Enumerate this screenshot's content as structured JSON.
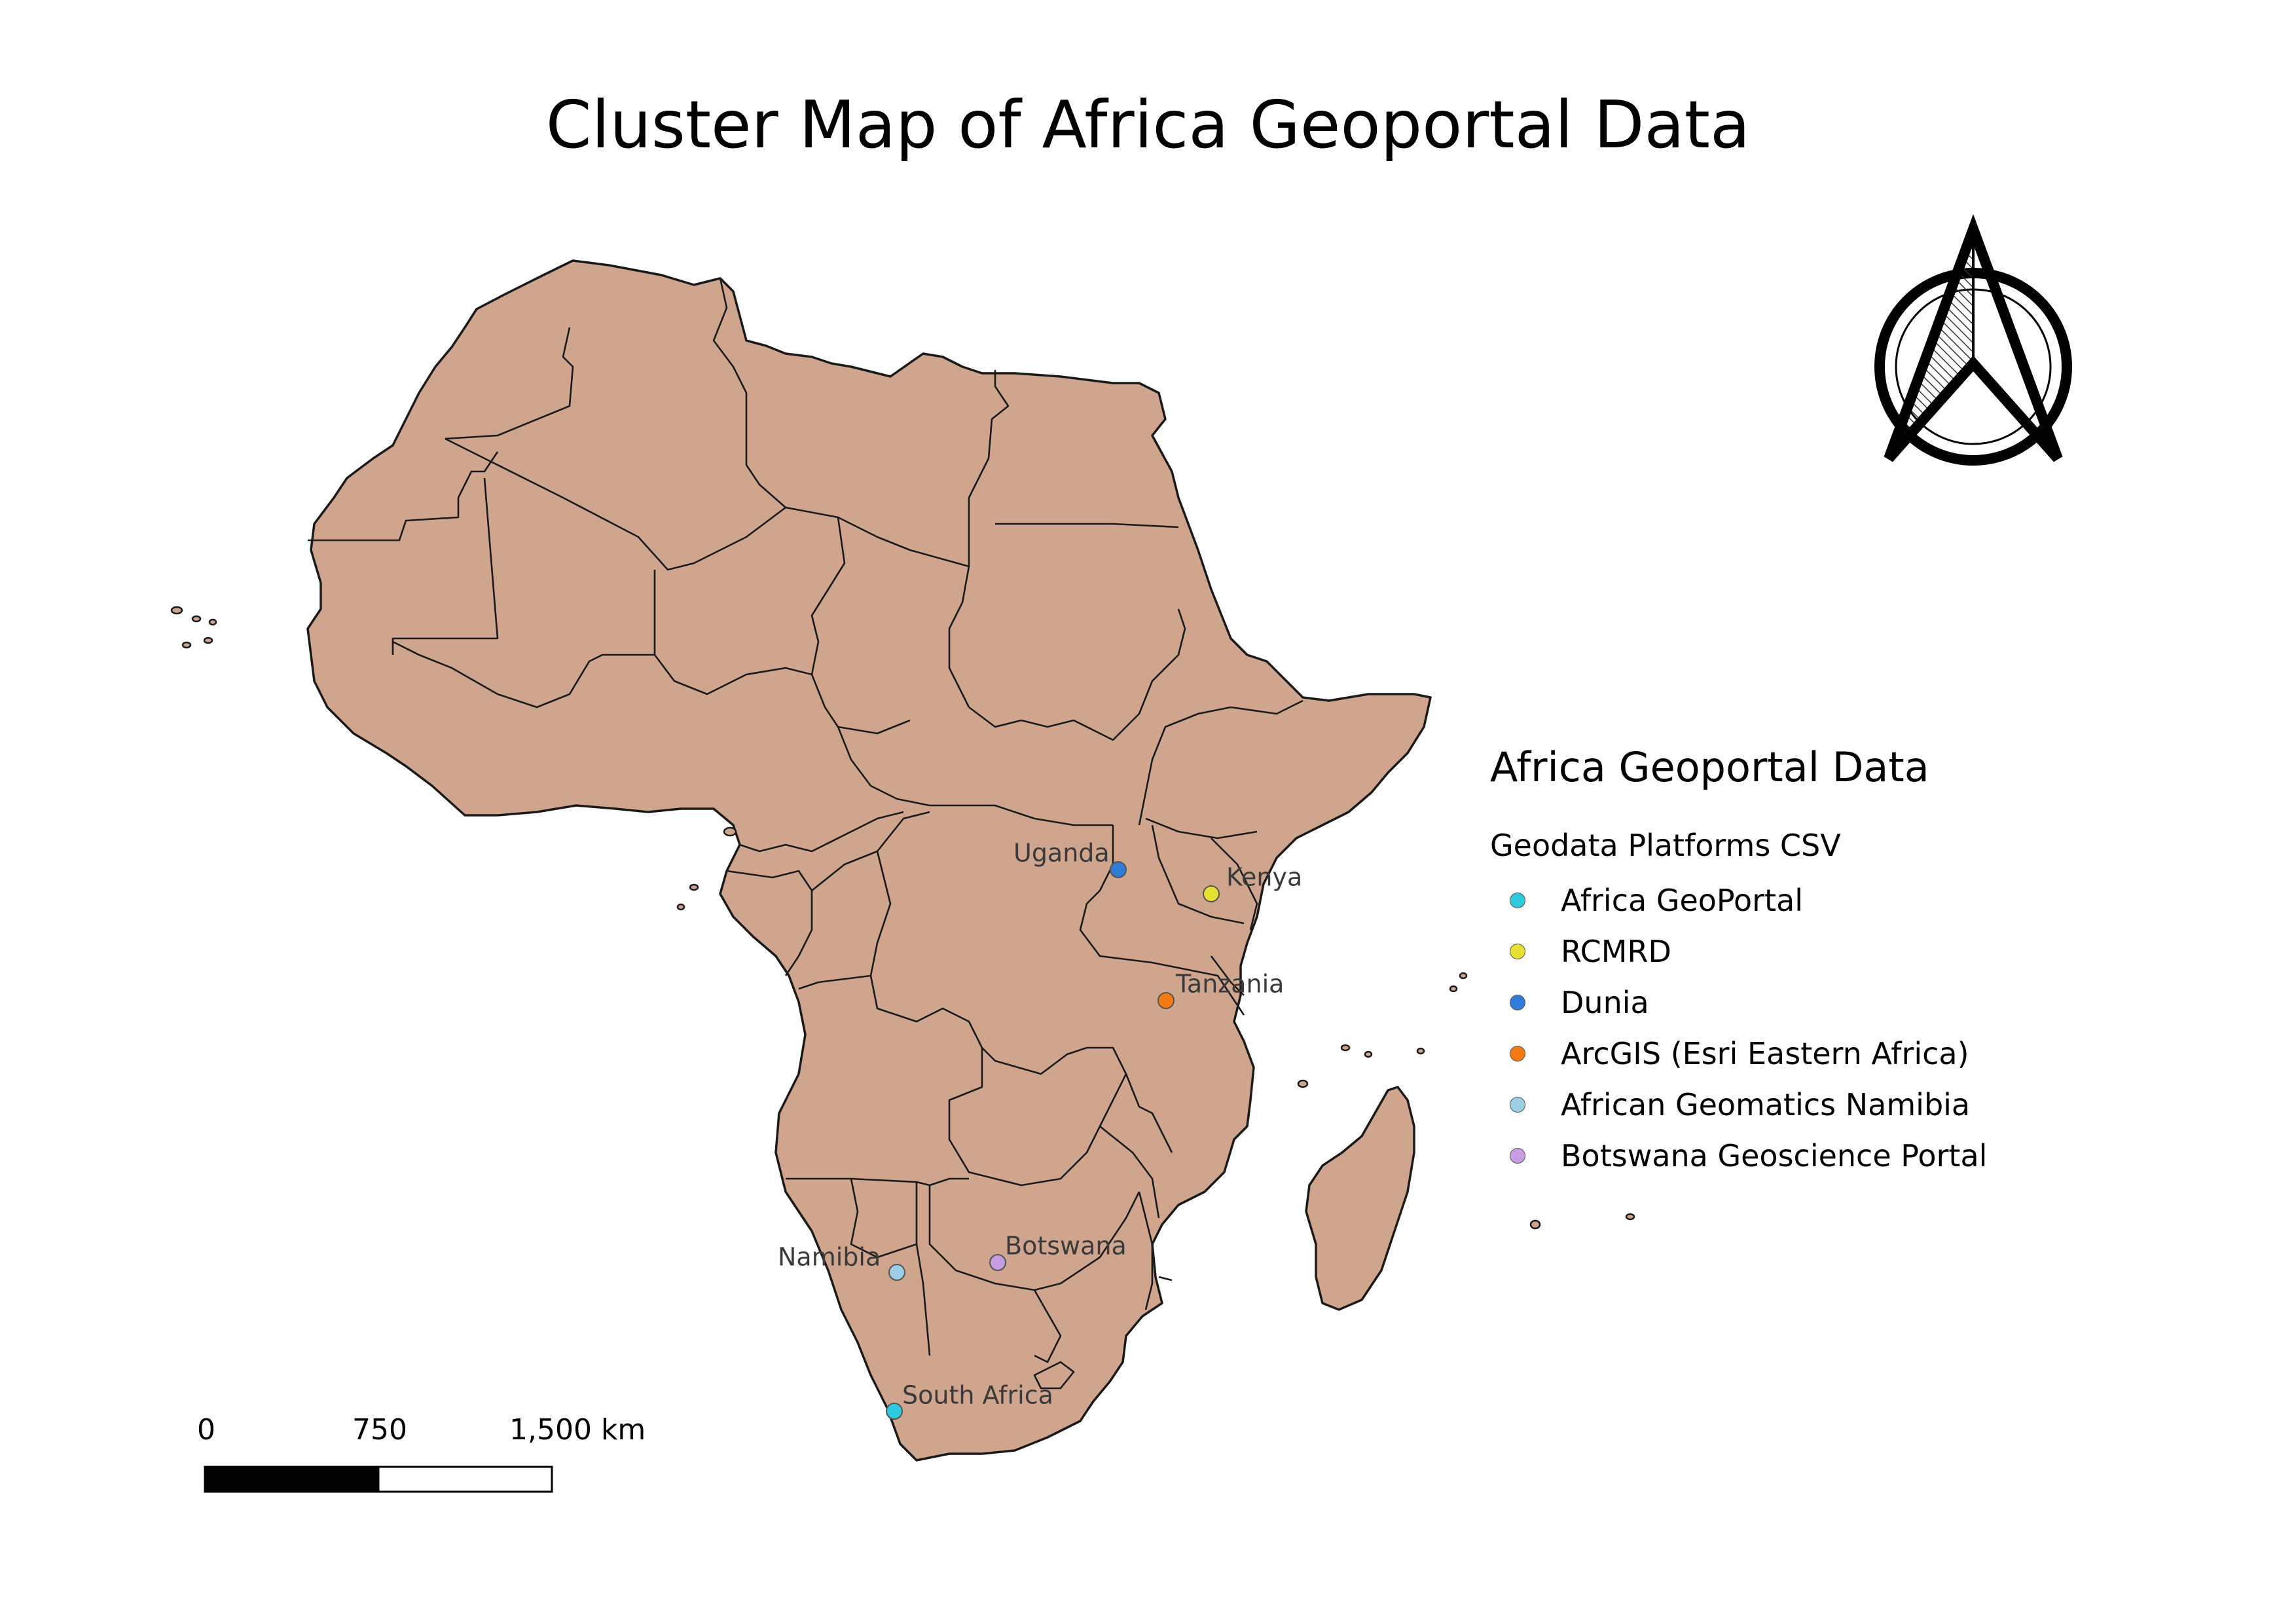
{
  "title": "Cluster Map of Africa Geoportal Data",
  "colors": {
    "land_fill": "#cfa58e",
    "border": "#1a1a1a",
    "label_text": "#3a3a3a"
  },
  "north_arrow": {
    "icon": "north-arrow-icon"
  },
  "legend": {
    "title": "Africa Geoportal Data",
    "subtitle": "Geodata Platforms CSV",
    "items": [
      {
        "label": "Africa GeoPortal",
        "color": "#2ecbe0"
      },
      {
        "label": "RCMRD",
        "color": "#e6e032"
      },
      {
        "label": "Dunia",
        "color": "#2f7bd6"
      },
      {
        "label": "ArcGIS (Esri Eastern Africa)",
        "color": "#f57a14"
      },
      {
        "label": "African Geomatics Namibia",
        "color": "#9ccfe6"
      },
      {
        "label": "Botswana Geoscience Portal",
        "color": "#c79ce0"
      }
    ]
  },
  "points": [
    {
      "country": "Uganda",
      "platform": "Dunia"
    },
    {
      "country": "Kenya",
      "platform": "RCMRD"
    },
    {
      "country": "Tanzania",
      "platform": "ArcGIS (Esri Eastern Africa)"
    },
    {
      "country": "Namibia",
      "platform": "African Geomatics Namibia"
    },
    {
      "country": "Botswana",
      "platform": "Botswana Geoscience Portal"
    },
    {
      "country": "South Africa",
      "platform": "Africa GeoPortal"
    }
  ],
  "scalebar": {
    "ticks": [
      "0",
      "750",
      "1,500 km"
    ]
  }
}
